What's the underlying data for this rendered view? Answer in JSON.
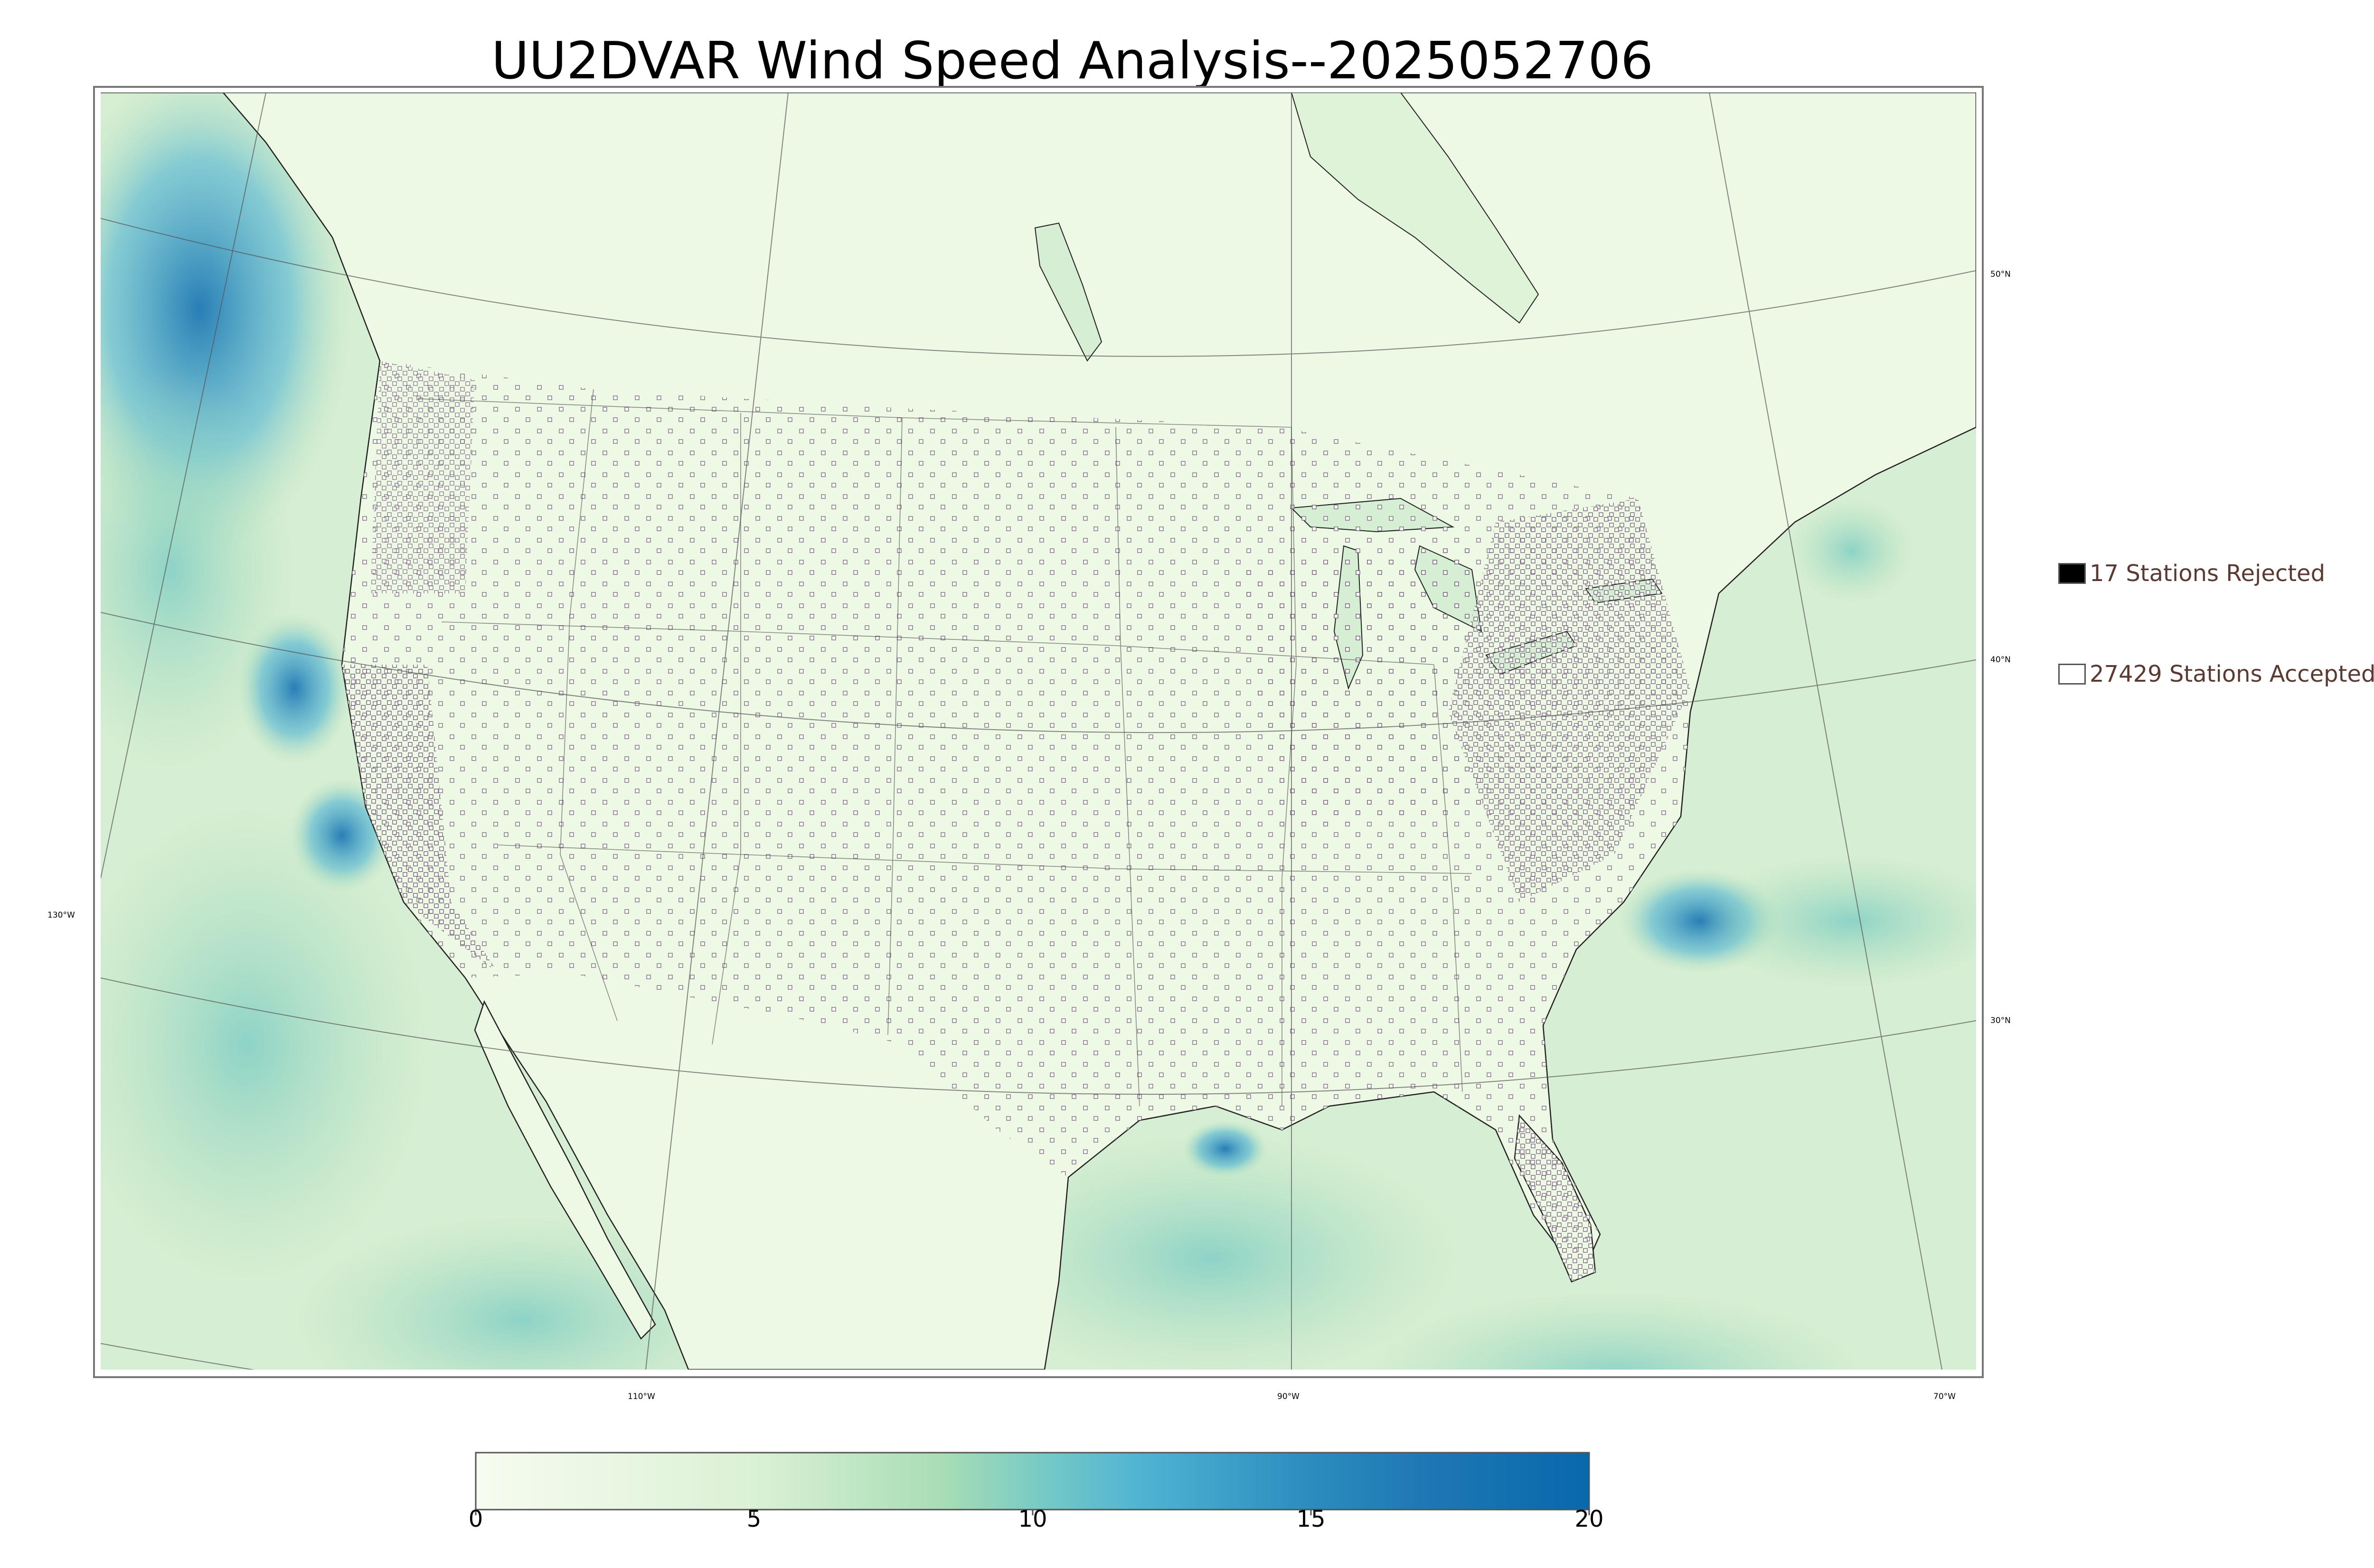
{
  "title": "UU2DVAR Wind Speed Analysis--2025052706",
  "legend": {
    "rejected": {
      "label": "17 Stations Rejected",
      "fill": "#000000"
    },
    "accepted": {
      "label": "27429 Stations Accepted",
      "fill": "#ffffff"
    }
  },
  "lat_labels": [
    "50°N",
    "40°N",
    "30°N"
  ],
  "lon_labels": [
    "130°W",
    "110°W",
    "90°W",
    "70°W"
  ],
  "colorbar": {
    "ticks": [
      "0",
      "5",
      "10",
      "15",
      "20"
    ],
    "range": [
      0,
      20
    ],
    "colors": [
      "#f7fcf0",
      "#e0f3db",
      "#ccebc5",
      "#a8ddb5",
      "#7bccc4",
      "#4eb3d3",
      "#2b8cbe",
      "#0868ac"
    ]
  },
  "colors": {
    "land": "#eef8e6",
    "ocean": "#d3ecd0",
    "high_wind": "#2c7fb8"
  }
}
